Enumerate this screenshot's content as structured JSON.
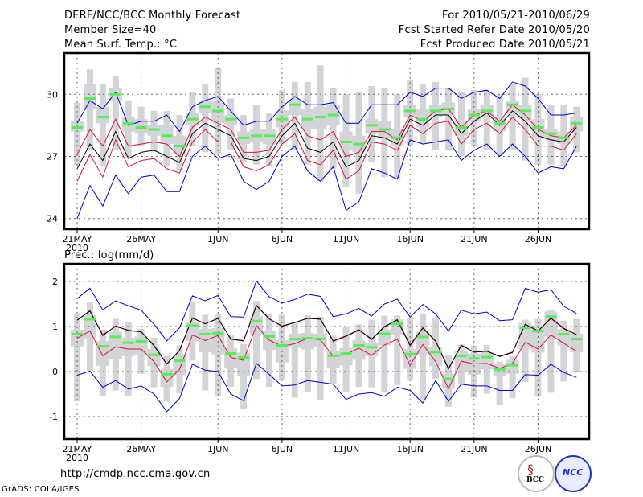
{
  "header": {
    "title": "DERF/NCC/BCC Monthly Forecast",
    "member_size": "Member Size=40",
    "variable1": "Mean Surf. Temp.: °C",
    "period": "For 2010/05/21-2010/06/29",
    "start_date": "Fcst Started Refer Date 2010/05/20",
    "produced_date": "Fcst Produced Date 2010/05/21"
  },
  "variable2": "Prec.: log(mm/d)",
  "footer": {
    "url": "http://cmdp.ncc.cma.gov.cn",
    "credit": "GrADS: COLA/IGES",
    "logo1": "BCC",
    "logo2": "NCC"
  },
  "colors": {
    "envelope": "#0000cc",
    "quartile": "#dd1133",
    "median": "#000000",
    "marker": "#55ee55",
    "box": "#d3d4d8"
  },
  "chart_data": [
    {
      "type": "line",
      "title": "Mean Surf. Temp.: °C",
      "ylim": [
        23.5,
        32
      ],
      "yticks": [
        24,
        27,
        30
      ],
      "x_tick_labels": [
        "21MAY",
        "26MAY",
        "1JUN",
        "6JUN",
        "11JUN",
        "16JUN",
        "21JUN",
        "26JUN"
      ],
      "x_tick_index": [
        0,
        5,
        11,
        16,
        21,
        26,
        31,
        36
      ],
      "x_year_label": "2010",
      "grid": true,
      "n_days": 40,
      "series": [
        {
          "name": "max",
          "values": [
            28.6,
            29.7,
            29.3,
            30.1,
            28.5,
            28.7,
            28.7,
            29.0,
            28.2,
            29.4,
            29.7,
            29.9,
            29.2,
            28.5,
            28.7,
            28.7,
            29.4,
            29.9,
            29.5,
            29.5,
            29.6,
            28.6,
            28.6,
            29.5,
            29.5,
            29.5,
            30.1,
            29.9,
            30.3,
            30.3,
            29.8,
            30.1,
            30.2,
            29.8,
            30.6,
            30.4,
            29.8,
            29.0,
            29.0,
            29.1
          ]
        },
        {
          "name": "upper_quartile",
          "values": [
            27.1,
            28.3,
            27.5,
            28.8,
            27.5,
            27.6,
            27.7,
            27.6,
            27.0,
            28.4,
            28.9,
            28.6,
            28.3,
            27.2,
            27.2,
            27.3,
            28.3,
            28.9,
            28.0,
            27.8,
            28.2,
            27.0,
            27.2,
            28.2,
            28.2,
            27.8,
            29.0,
            28.7,
            29.2,
            29.3,
            28.4,
            29.0,
            29.2,
            28.7,
            29.5,
            29.0,
            28.3,
            28.0,
            27.9,
            28.5
          ]
        },
        {
          "name": "median",
          "values": [
            26.4,
            27.6,
            26.8,
            28.2,
            26.9,
            27.2,
            27.3,
            27.0,
            26.7,
            28.1,
            28.6,
            28.3,
            28.0,
            26.9,
            26.8,
            27.0,
            28.0,
            28.6,
            27.4,
            27.2,
            27.7,
            26.5,
            26.8,
            28.0,
            27.9,
            27.6,
            28.8,
            28.5,
            29.0,
            29.0,
            28.1,
            28.7,
            29.1,
            28.5,
            29.2,
            28.7,
            28.0,
            27.8,
            27.7,
            28.4
          ]
        },
        {
          "name": "lower_quartile",
          "values": [
            25.8,
            27.1,
            26.0,
            27.8,
            26.5,
            26.8,
            26.9,
            26.4,
            26.2,
            27.7,
            28.3,
            27.7,
            27.7,
            26.5,
            26.3,
            26.6,
            27.6,
            28.1,
            26.8,
            26.6,
            27.3,
            25.9,
            26.3,
            27.7,
            27.6,
            27.3,
            28.5,
            28.1,
            28.6,
            28.7,
            27.6,
            28.3,
            28.6,
            28.1,
            28.9,
            28.3,
            27.5,
            27.5,
            27.3,
            28.1
          ]
        },
        {
          "name": "min",
          "values": [
            24.0,
            25.6,
            24.6,
            26.1,
            25.2,
            26.0,
            26.1,
            25.3,
            25.3,
            27.0,
            27.5,
            26.9,
            27.1,
            25.8,
            25.4,
            25.8,
            27.0,
            27.5,
            26.3,
            25.8,
            26.5,
            24.4,
            24.8,
            26.4,
            26.2,
            25.9,
            27.8,
            27.6,
            27.7,
            27.8,
            26.8,
            27.3,
            27.6,
            27.0,
            27.6,
            27.0,
            26.2,
            26.5,
            26.4,
            27.5
          ]
        },
        {
          "name": "marker",
          "values": [
            28.4,
            29.8,
            28.9,
            30.0,
            28.6,
            28.4,
            28.3,
            28.0,
            27.5,
            28.8,
            29.4,
            29.2,
            28.8,
            27.9,
            28.0,
            28.0,
            28.8,
            29.5,
            28.8,
            28.9,
            29.0,
            27.7,
            27.6,
            28.5,
            28.3,
            27.9,
            29.2,
            28.8,
            29.2,
            29.3,
            28.4,
            29.0,
            29.2,
            28.6,
            29.5,
            29.2,
            28.4,
            28.1,
            27.9,
            28.6
          ]
        },
        {
          "name": "box_outer_top",
          "values": [
            29.6,
            31.2,
            30.5,
            30.9,
            29.7,
            29.4,
            29.2,
            29.2,
            29.0,
            30.1,
            30.5,
            31.3,
            29.8,
            29.0,
            29.5,
            29.1,
            30.2,
            30.6,
            30.6,
            31.4,
            30.3,
            30.0,
            30.1,
            30.4,
            30.3,
            30.0,
            30.7,
            30.5,
            30.6,
            30.3,
            30.1,
            30.2,
            30.2,
            30.0,
            30.5,
            30.8,
            30.0,
            29.5,
            29.5,
            29.4
          ]
        },
        {
          "name": "box_outer_bottom",
          "values": [
            26.6,
            27.3,
            26.5,
            27.3,
            27.0,
            27.5,
            27.2,
            26.5,
            26.3,
            27.5,
            27.2,
            27.1,
            27.3,
            26.7,
            26.6,
            26.5,
            27.6,
            27.3,
            26.6,
            25.8,
            26.4,
            25.5,
            25.2,
            26.7,
            26.0,
            25.9,
            27.5,
            27.6,
            27.3,
            27.3,
            27.0,
            27.5,
            27.3,
            27.0,
            27.3,
            26.8,
            26.6,
            26.6,
            26.5,
            27.2
          ]
        },
        {
          "name": "box_inner_top",
          "values": [
            28.7,
            30.5,
            29.4,
            30.3,
            28.9,
            28.8,
            28.5,
            28.5,
            28.0,
            29.1,
            29.7,
            29.7,
            29.0,
            28.2,
            28.3,
            28.3,
            29.2,
            29.7,
            29.3,
            29.4,
            29.5,
            28.2,
            28.0,
            28.8,
            28.7,
            28.3,
            29.5,
            29.3,
            29.5,
            29.6,
            28.7,
            29.3,
            29.5,
            28.9,
            29.7,
            29.5,
            28.8,
            28.3,
            28.2,
            28.9
          ]
        },
        {
          "name": "box_inner_bottom",
          "values": [
            28.2,
            29.3,
            28.6,
            29.7,
            28.2,
            28.1,
            28.0,
            27.6,
            27.1,
            28.5,
            29.1,
            28.6,
            28.5,
            27.6,
            27.7,
            27.6,
            28.4,
            29.0,
            28.3,
            28.3,
            28.5,
            27.3,
            27.2,
            28.1,
            27.9,
            27.5,
            28.9,
            28.4,
            28.9,
            29.0,
            28.0,
            28.7,
            28.9,
            28.2,
            29.1,
            28.8,
            27.9,
            27.8,
            27.6,
            28.2
          ]
        }
      ]
    },
    {
      "type": "line",
      "title": "Prec.: log(mm/d)",
      "ylim": [
        -1.5,
        2.4
      ],
      "yticks": [
        -1,
        0,
        1,
        2
      ],
      "x_tick_labels": [
        "21MAY",
        "26MAY",
        "1JUN",
        "6JUN",
        "11JUN",
        "16JUN",
        "21JUN",
        "26JUN"
      ],
      "x_tick_index": [
        0,
        5,
        11,
        16,
        21,
        26,
        31,
        36
      ],
      "x_year_label": "2010",
      "grid": true,
      "n_days": 40,
      "series": [
        {
          "name": "max",
          "values": [
            1.62,
            1.85,
            1.37,
            1.57,
            1.46,
            1.36,
            1.05,
            0.68,
            0.97,
            1.68,
            1.57,
            1.69,
            1.22,
            1.21,
            2.01,
            1.66,
            1.52,
            1.6,
            1.72,
            1.67,
            1.22,
            1.28,
            1.4,
            1.23,
            1.5,
            1.61,
            1.21,
            1.49,
            1.28,
            0.9,
            1.36,
            1.28,
            1.32,
            1.13,
            1.15,
            1.85,
            1.76,
            1.82,
            1.45,
            1.29
          ]
        },
        {
          "name": "upper_quartile",
          "values": [
            1.14,
            1.34,
            0.82,
            1.0,
            0.92,
            0.88,
            0.57,
            0.16,
            0.47,
            1.19,
            1.06,
            1.18,
            0.72,
            0.69,
            1.46,
            1.17,
            1.0,
            1.09,
            1.18,
            1.17,
            0.67,
            0.78,
            0.92,
            0.71,
            0.99,
            1.14,
            0.57,
            0.96,
            0.67,
            0.07,
            0.59,
            0.43,
            0.45,
            0.33,
            0.42,
            1.05,
            0.9,
            1.18,
            0.95,
            0.82
          ]
        },
        {
          "name": "median",
          "values": [
            1.14,
            1.35,
            0.8,
            1.01,
            0.91,
            0.88,
            0.58,
            0.17,
            0.47,
            1.19,
            1.06,
            1.18,
            0.72,
            0.68,
            1.47,
            1.17,
            1.01,
            1.09,
            1.18,
            1.16,
            0.68,
            0.79,
            0.93,
            0.72,
            1.0,
            1.15,
            0.59,
            0.97,
            0.68,
            0.06,
            0.58,
            0.43,
            0.45,
            0.34,
            0.43,
            1.05,
            0.9,
            1.19,
            0.96,
            0.82
          ]
        },
        {
          "name": "lower_quartile",
          "values": [
            0.74,
            0.9,
            0.35,
            0.55,
            0.5,
            0.5,
            0.22,
            -0.23,
            0.05,
            0.81,
            0.69,
            0.8,
            0.31,
            0.25,
            1.02,
            0.7,
            0.56,
            0.62,
            0.74,
            0.7,
            0.34,
            0.38,
            0.52,
            0.36,
            0.59,
            0.72,
            0.14,
            0.6,
            0.22,
            -0.38,
            0.23,
            0.17,
            0.18,
            0.07,
            0.18,
            0.65,
            0.5,
            0.81,
            0.63,
            0.45
          ]
        },
        {
          "name": "min",
          "values": [
            -0.08,
            0.01,
            -0.35,
            -0.2,
            -0.39,
            -0.32,
            -0.5,
            -0.89,
            -0.6,
            0.16,
            0.03,
            0.0,
            -0.5,
            -0.65,
            0.18,
            -0.06,
            -0.32,
            -0.3,
            -0.2,
            -0.24,
            -0.28,
            -0.62,
            -0.5,
            -0.47,
            -0.55,
            -0.35,
            -0.42,
            -0.7,
            -0.2,
            -0.66,
            -0.28,
            -0.32,
            -0.32,
            -0.42,
            -0.42,
            -0.07,
            -0.08,
            0.16,
            -0.02,
            -0.13
          ]
        },
        {
          "name": "marker",
          "values": [
            0.83,
            1.16,
            0.56,
            0.77,
            0.64,
            0.67,
            0.37,
            -0.06,
            0.24,
            1.02,
            0.83,
            0.85,
            0.4,
            0.31,
            1.12,
            0.78,
            0.58,
            0.72,
            0.74,
            0.73,
            0.35,
            0.4,
            0.58,
            0.54,
            0.84,
            1.06,
            0.39,
            0.77,
            0.43,
            -0.16,
            0.35,
            0.29,
            0.32,
            0.05,
            0.14,
            0.97,
            0.9,
            1.22,
            0.83,
            0.72
          ]
        },
        {
          "name": "box_outer_top",
          "values": [
            1.29,
            1.53,
            0.93,
            1.17,
            1.1,
            0.95,
            0.75,
            0.35,
            0.58,
            1.56,
            1.26,
            1.28,
            0.8,
            0.61,
            1.57,
            1.28,
            1.26,
            1.1,
            1.25,
            1.22,
            0.82,
            0.99,
            1.05,
            1.15,
            1.24,
            1.24,
            1.2,
            1.29,
            1.2,
            0.37,
            0.6,
            0.58,
            0.59,
            0.22,
            0.34,
            1.15,
            1.17,
            1.38,
            1.13,
            1.17
          ]
        },
        {
          "name": "box_outer_bottom",
          "values": [
            -0.66,
            0.02,
            -0.54,
            -0.42,
            -0.55,
            -0.05,
            -0.35,
            -0.67,
            -0.48,
            0.24,
            -0.42,
            -0.53,
            -0.34,
            -0.84,
            -0.17,
            -0.34,
            -0.19,
            -0.58,
            -0.46,
            -0.63,
            -0.27,
            -0.45,
            -0.34,
            -0.35,
            -0.46,
            -0.3,
            -0.18,
            -0.62,
            -0.16,
            -0.78,
            -0.27,
            -0.58,
            -0.49,
            -0.75,
            -0.59,
            -0.23,
            -0.54,
            -0.47,
            -0.22,
            -0.02
          ]
        },
        {
          "name": "box_inner_top",
          "values": [
            0.93,
            1.25,
            0.68,
            0.88,
            0.75,
            0.78,
            0.5,
            0.06,
            0.36,
            1.1,
            0.95,
            0.97,
            0.52,
            0.42,
            1.23,
            0.9,
            0.7,
            0.84,
            0.86,
            0.84,
            0.46,
            0.52,
            0.7,
            0.64,
            0.94,
            1.16,
            0.5,
            0.88,
            0.54,
            -0.05,
            0.46,
            0.4,
            0.43,
            0.16,
            0.26,
            1.08,
            1.02,
            1.33,
            0.94,
            0.84
          ]
        },
        {
          "name": "box_inner_bottom",
          "values": [
            0.56,
            0.74,
            0.13,
            0.28,
            0.34,
            0.37,
            0.12,
            -0.34,
            -0.08,
            0.67,
            0.43,
            0.38,
            0.09,
            -0.09,
            0.8,
            0.48,
            0.2,
            0.53,
            0.49,
            0.54,
            0.08,
            0.14,
            0.26,
            0.34,
            0.58,
            0.82,
            0.06,
            0.38,
            0.12,
            -0.38,
            0.0,
            -0.07,
            0.05,
            -0.1,
            -0.05,
            0.49,
            0.42,
            0.77,
            0.58,
            0.43
          ]
        }
      ]
    }
  ]
}
